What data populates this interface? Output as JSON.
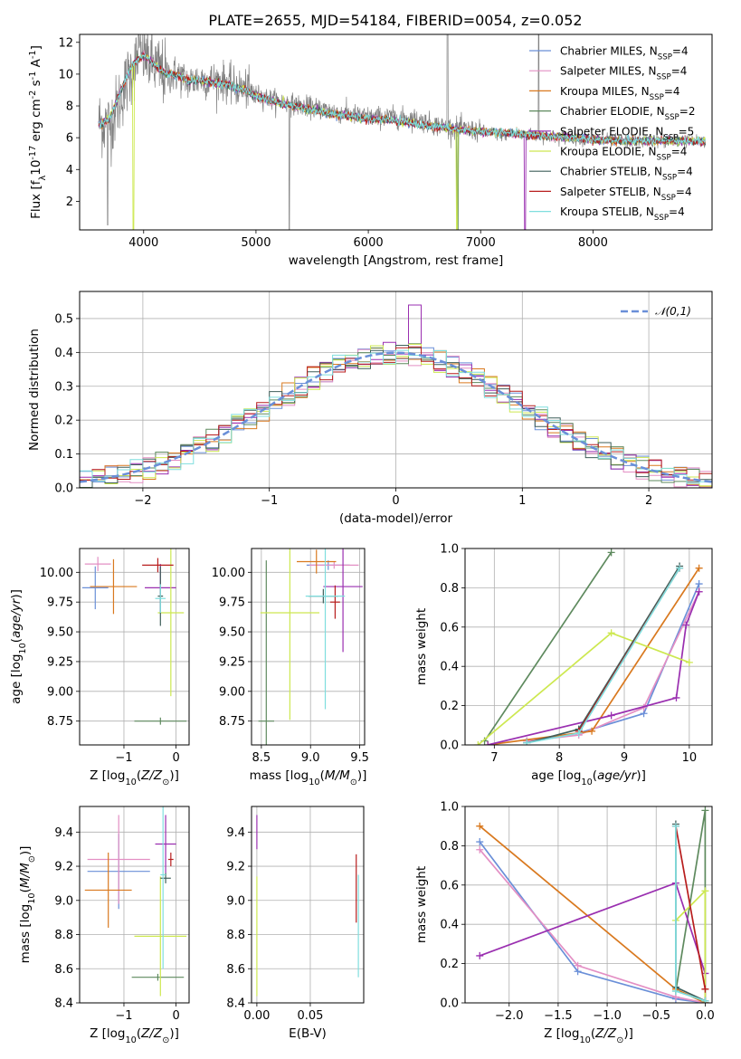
{
  "figure_title": "PLATE=2655, MJD=54184, FIBERID=0054, z=0.052",
  "models": [
    {
      "name": "Chabrier MILES, N$_{SSP}$=4",
      "color": "#6a8fd8"
    },
    {
      "name": "Salpeter MILES, N$_{SSP}$=4",
      "color": "#e38fc4"
    },
    {
      "name": "Kroupa MILES, N$_{SSP}$=4",
      "color": "#d9791f"
    },
    {
      "name": "Chabrier ELODIE, N$_{SSP}$=2",
      "color": "#5e8a5e"
    },
    {
      "name": "Salpeter ELODIE, N$_{SSP}$=5",
      "color": "#9a2fb0"
    },
    {
      "name": "Kroupa ELODIE, N$_{SSP}$=4",
      "color": "#cde850"
    },
    {
      "name": "Chabrier STELIB, N$_{SSP}$=4",
      "color": "#3f5f5a"
    },
    {
      "name": "Salpeter STELIB, N$_{SSP}$=4",
      "color": "#b81e1e"
    },
    {
      "name": "Kroupa STELIB, N$_{SSP}$=4",
      "color": "#7fdede"
    }
  ],
  "chart_data": [
    {
      "id": "spectrum",
      "type": "line",
      "title": "PLATE=2655, MJD=54184, FIBERID=0054, z=0.052",
      "xlabel": "wavelength [Angstrom, rest frame]",
      "ylabel": "Flux [f$_\\lambda$10$^{-17}$ erg cm$^{-2}$ s$^{-1}$ A$^{-1}$]",
      "xlim": [
        3430,
        9060
      ],
      "ylim": [
        0.2,
        12.5
      ],
      "xticks": [
        4000,
        5000,
        6000,
        7000,
        8000
      ],
      "yticks": [
        2,
        4,
        6,
        8,
        10,
        12
      ],
      "legend": "upper right",
      "data_series": {
        "name": "",
        "color": "#808080",
        "x": [
          3600,
          3700,
          3800,
          3900,
          4000,
          4100,
          4200,
          4300,
          4400,
          4500,
          4600,
          4700,
          4800,
          4900,
          5000,
          5200,
          5400,
          5600,
          5800,
          6000,
          6200,
          6400,
          6600,
          6800,
          7000,
          7200,
          7400,
          7600,
          7800,
          8000,
          8200,
          8400,
          8600,
          8800,
          9000
        ],
        "y": [
          7.0,
          6.8,
          8.6,
          10.4,
          11.2,
          10.5,
          9.9,
          10.0,
          9.5,
          9.7,
          9.6,
          9.6,
          9.2,
          9.1,
          8.7,
          8.3,
          8.0,
          7.8,
          7.5,
          7.3,
          7.3,
          7.2,
          6.8,
          6.6,
          6.4,
          6.2,
          6.2,
          6.1,
          6.0,
          5.9,
          5.8,
          5.8,
          5.8,
          5.8,
          5.7
        ]
      },
      "model_x": [
        3600,
        3700,
        3800,
        3900,
        4000,
        4100,
        4200,
        4300,
        4400,
        4500,
        4600,
        4700,
        4800,
        4900,
        5000,
        5200,
        5400,
        5600,
        5800,
        6000,
        6200,
        6400,
        6600,
        6800,
        7000,
        7200,
        7400,
        7600,
        7800,
        8000,
        8200,
        8400,
        8600,
        8800,
        9000
      ],
      "model_y": [
        6.8,
        7.2,
        9.0,
        10.6,
        11.2,
        10.6,
        10.0,
        9.9,
        9.6,
        9.6,
        9.5,
        9.4,
        9.2,
        9.0,
        8.6,
        8.2,
        7.9,
        7.6,
        7.4,
        7.2,
        7.1,
        6.9,
        6.7,
        6.5,
        6.4,
        6.3,
        6.2,
        6.1,
        6.0,
        5.9,
        5.8,
        5.8,
        5.8,
        5.8,
        5.8
      ]
    },
    {
      "id": "residuals",
      "type": "histogram",
      "xlabel": "(data-model)/error",
      "ylabel": "Normed distribution",
      "xlim": [
        -2.5,
        2.5
      ],
      "ylim": [
        0.0,
        0.58
      ],
      "xticks": [
        -2,
        -1,
        0,
        1,
        2
      ],
      "yticks": [
        0.0,
        0.1,
        0.2,
        0.3,
        0.4,
        0.5
      ],
      "legend": "upper right",
      "gaussian_label": "$\\mathcal{N}(0,1)$",
      "gaussian_color": "#6a8fd8",
      "bin_width": 0.1,
      "bin_start": -2.5
    },
    {
      "id": "age-vs-Z",
      "type": "errorbar",
      "xlabel": "Z [log$_{10}$($Z/Z_\\odot$)]",
      "ylabel": "age  [log$_{10}$($age/yr$)]",
      "xlim": [
        -1.85,
        0.25
      ],
      "ylim": [
        8.55,
        10.2
      ],
      "xticks": [
        -1,
        0
      ],
      "xticklabels": [
        "−1",
        "0"
      ],
      "yticks": [
        8.75,
        9.0,
        9.25,
        9.5,
        9.75,
        10.0
      ],
      "points": [
        {
          "x": -1.55,
          "y": 9.87,
          "xerr": 0.25,
          "yerr": 0.18,
          "model": 0
        },
        {
          "x": -1.5,
          "y": 10.07,
          "xerr": 0.25,
          "yerr": 0.06,
          "model": 1
        },
        {
          "x": -1.2,
          "y": 9.88,
          "xerr": 0.45,
          "yerr": 0.23,
          "model": 2
        },
        {
          "x": -0.3,
          "y": 8.75,
          "xerr": 0.5,
          "yerr": 0.03,
          "model": 3
        },
        {
          "x": -0.3,
          "y": 9.87,
          "xerr": 0.3,
          "yerr": 0.2,
          "model": 4
        },
        {
          "x": -0.1,
          "y": 9.66,
          "xerr": 0.25,
          "yerr": 0.7,
          "model": 5
        },
        {
          "x": -0.3,
          "y": 9.8,
          "xerr": 0.05,
          "yerr": 0.25,
          "model": 6
        },
        {
          "x": -0.35,
          "y": 10.06,
          "xerr": 0.3,
          "yerr": 0.06,
          "model": 7
        },
        {
          "x": -0.3,
          "y": 9.78,
          "xerr": 0.1,
          "yerr": 0.12,
          "model": 8
        }
      ]
    },
    {
      "id": "age-vs-mass",
      "type": "errorbar",
      "xlabel": "mass [log$_{10}$($M/M_\\odot$)]",
      "ylabel": "",
      "xlim": [
        8.4,
        9.55
      ],
      "ylim": [
        8.55,
        10.2
      ],
      "xticks": [
        8.5,
        9.0,
        9.5
      ],
      "xticklabels": [
        "8.5",
        "9.0",
        "9.5"
      ],
      "yticks": [
        8.75,
        9.0,
        9.25,
        9.5,
        9.75,
        10.0
      ],
      "points": [
        {
          "x": 9.18,
          "y": 10.06,
          "xerr": 0.22,
          "yerr": 0.04,
          "model": 0
        },
        {
          "x": 9.24,
          "y": 10.06,
          "xerr": 0.25,
          "yerr": 0.03,
          "model": 1
        },
        {
          "x": 9.06,
          "y": 10.09,
          "xerr": 0.2,
          "yerr": 0.1,
          "model": 2
        },
        {
          "x": 8.55,
          "y": 8.75,
          "xerr": 0.08,
          "yerr": 1.35,
          "model": 3
        },
        {
          "x": 9.33,
          "y": 9.88,
          "xerr": 0.2,
          "yerr": 0.55,
          "model": 4
        },
        {
          "x": 8.79,
          "y": 9.66,
          "xerr": 0.3,
          "yerr": 0.9,
          "model": 5
        },
        {
          "x": 9.13,
          "y": 9.8,
          "xerr": 0.15,
          "yerr": 0.06,
          "model": 6
        },
        {
          "x": 9.25,
          "y": 9.75,
          "xerr": 0.05,
          "yerr": 0.14,
          "model": 7
        },
        {
          "x": 9.15,
          "y": 9.8,
          "xerr": 0.2,
          "yerr": 0.95,
          "model": 8
        }
      ]
    },
    {
      "id": "massweight-vs-age",
      "type": "line",
      "xlabel": "age  [log$_{10}$($age/yr$)]",
      "ylabel": "mass weight",
      "xlim": [
        6.55,
        10.35
      ],
      "ylim": [
        0.0,
        1.0
      ],
      "xticks": [
        7,
        8,
        9,
        10
      ],
      "xticklabels": [
        "7",
        "8",
        "9",
        "10"
      ],
      "yticks": [
        0.0,
        0.2,
        0.4,
        0.6,
        0.8,
        1.0
      ],
      "series": [
        {
          "model": 0,
          "x": [
            7.5,
            8.3,
            9.3,
            10.15
          ],
          "y": [
            0.02,
            0.06,
            0.16,
            0.82
          ]
        },
        {
          "model": 1,
          "x": [
            7.5,
            8.3,
            9.3,
            10.15
          ],
          "y": [
            0.02,
            0.05,
            0.19,
            0.78
          ]
        },
        {
          "model": 2,
          "x": [
            6.9,
            8.5,
            10.15
          ],
          "y": [
            0.0,
            0.07,
            0.9
          ]
        },
        {
          "model": 3,
          "x": [
            6.85,
            8.8
          ],
          "y": [
            0.02,
            0.98
          ]
        },
        {
          "model": 4,
          "x": [
            6.9,
            8.8,
            9.8,
            9.95,
            10.15
          ],
          "y": [
            0.0,
            0.15,
            0.24,
            0.61,
            0.78
          ]
        },
        {
          "model": 5,
          "x": [
            6.75,
            8.8,
            10.0
          ],
          "y": [
            0.0,
            0.57,
            0.42
          ]
        },
        {
          "model": 6,
          "x": [
            7.5,
            8.3,
            9.85
          ],
          "y": [
            0.01,
            0.08,
            0.91
          ]
        },
        {
          "model": 7,
          "x": [
            8.3,
            9.85
          ],
          "y": [
            0.07,
            0.9
          ]
        },
        {
          "model": 8,
          "x": [
            7.5,
            8.3,
            9.85
          ],
          "y": [
            0.01,
            0.06,
            0.9
          ]
        }
      ]
    },
    {
      "id": "mass-vs-Z",
      "type": "errorbar",
      "xlabel": "Z [log$_{10}$($Z/Z_\\odot$)]",
      "ylabel": "mass [log$_{10}$($M/M_\\odot$)]",
      "xlim": [
        -1.85,
        0.25
      ],
      "ylim": [
        8.4,
        9.55
      ],
      "xticks": [
        -1,
        0
      ],
      "xticklabels": [
        "−1",
        "0"
      ],
      "yticks": [
        8.4,
        8.6,
        8.8,
        9.0,
        9.2,
        9.4
      ],
      "points": [
        {
          "x": -1.1,
          "y": 9.17,
          "xerr": 0.6,
          "yerr": 0.22,
          "model": 0
        },
        {
          "x": -1.1,
          "y": 9.24,
          "xerr": 0.6,
          "yerr": 0.26,
          "model": 1
        },
        {
          "x": -1.3,
          "y": 9.06,
          "xerr": 0.45,
          "yerr": 0.22,
          "model": 2
        },
        {
          "x": -0.35,
          "y": 8.55,
          "xerr": 0.5,
          "yerr": 0.02,
          "model": 3
        },
        {
          "x": -0.2,
          "y": 9.33,
          "xerr": 0.2,
          "yerr": 0.17,
          "model": 4
        },
        {
          "x": -0.3,
          "y": 8.79,
          "xerr": 0.5,
          "yerr": 0.35,
          "model": 5
        },
        {
          "x": -0.2,
          "y": 9.13,
          "xerr": 0.1,
          "yerr": 0.03,
          "model": 6
        },
        {
          "x": -0.1,
          "y": 9.24,
          "xerr": 0.05,
          "yerr": 0.04,
          "model": 7
        },
        {
          "x": -0.25,
          "y": 9.15,
          "xerr": 0.05,
          "yerr": 0.55,
          "model": 8
        }
      ]
    },
    {
      "id": "mass-vs-ebv",
      "type": "errorbar",
      "xlabel": "E(B-V)",
      "ylabel": "",
      "xlim": [
        -0.005,
        0.1
      ],
      "ylim": [
        8.4,
        9.55
      ],
      "xticks": [
        0.0,
        0.05
      ],
      "xticklabels": [
        "0.00",
        "0.05"
      ],
      "yticks": [
        8.4,
        8.6,
        8.8,
        9.0,
        9.2,
        9.4
      ],
      "points": [
        {
          "x": 0.0,
          "y": 9.4,
          "xerr": 0.0,
          "yerr": 0.1,
          "model": 4
        },
        {
          "x": 0.0,
          "y": 8.79,
          "xerr": 0.0,
          "yerr": 0.35,
          "model": 5
        },
        {
          "x": 0.093,
          "y": 9.07,
          "xerr": 0.0,
          "yerr": 0.2,
          "model": 7
        },
        {
          "x": 0.095,
          "y": 8.85,
          "xerr": 0.0,
          "yerr": 0.3,
          "model": 8
        }
      ]
    },
    {
      "id": "massweight-vs-Z",
      "type": "line",
      "xlabel": "Z [log$_{10}$($Z/Z_\\odot$)]",
      "ylabel": "mass weight",
      "xlim": [
        -2.45,
        0.07
      ],
      "ylim": [
        0.0,
        1.0
      ],
      "xticks": [
        -2.0,
        -1.5,
        -1.0,
        -0.5,
        0.0
      ],
      "xticklabels": [
        "−2.0",
        "−1.5",
        "−1.0",
        "−0.5",
        "0.0"
      ],
      "yticks": [
        0.0,
        0.2,
        0.4,
        0.6,
        0.8,
        1.0
      ],
      "series": [
        {
          "model": 0,
          "x": [
            -2.3,
            -1.3,
            -0.3,
            0.0
          ],
          "y": [
            0.82,
            0.16,
            0.02,
            0.0
          ]
        },
        {
          "model": 1,
          "x": [
            -2.3,
            -1.3,
            -0.3,
            0.0
          ],
          "y": [
            0.78,
            0.19,
            0.03,
            0.0
          ]
        },
        {
          "model": 2,
          "x": [
            -2.3,
            -0.3,
            0.0
          ],
          "y": [
            0.9,
            0.07,
            0.0
          ]
        },
        {
          "model": 3,
          "x": [
            -0.3,
            0.0,
            0.0
          ],
          "y": [
            0.06,
            0.98,
            0.0
          ]
        },
        {
          "model": 4,
          "x": [
            -2.3,
            -0.3,
            0.0,
            0.0
          ],
          "y": [
            0.24,
            0.61,
            0.15,
            0.0
          ]
        },
        {
          "model": 5,
          "x": [
            -0.3,
            0.0,
            0.0
          ],
          "y": [
            0.42,
            0.57,
            0.0
          ]
        },
        {
          "model": 6,
          "x": [
            -0.3,
            -0.3,
            0.0
          ],
          "y": [
            0.91,
            0.08,
            0.01
          ]
        },
        {
          "model": 7,
          "x": [
            -0.3,
            0.0
          ],
          "y": [
            0.9,
            0.07
          ]
        },
        {
          "model": 8,
          "x": [
            -0.3,
            -0.3,
            0.0
          ],
          "y": [
            0.9,
            0.06,
            0.01
          ]
        }
      ]
    }
  ]
}
